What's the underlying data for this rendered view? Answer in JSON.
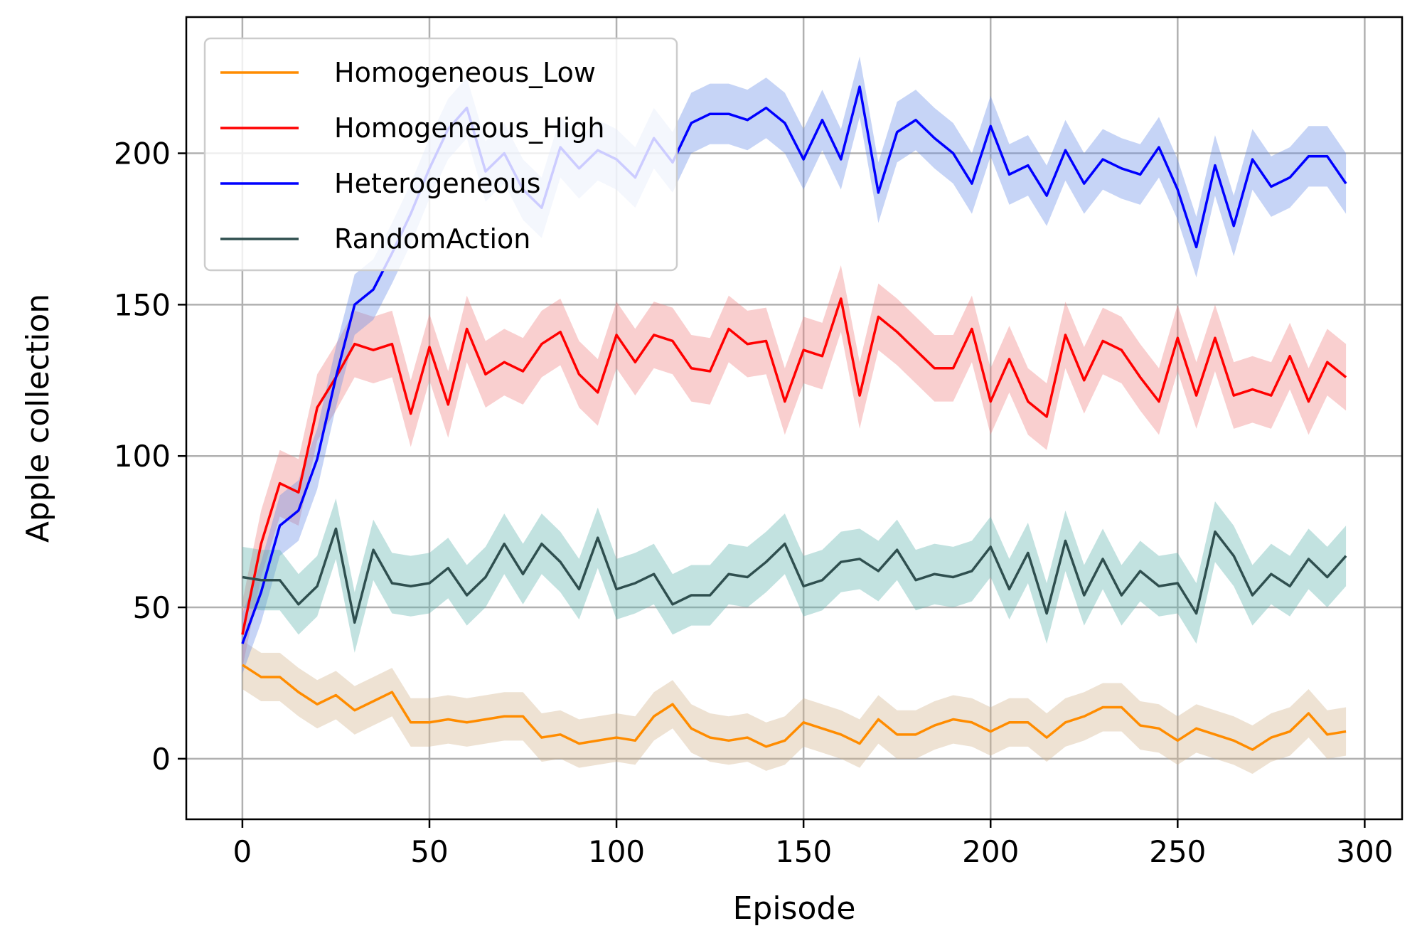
{
  "chart_data": {
    "type": "line",
    "xlabel": "Episode",
    "ylabel": "Apple collection",
    "xlim": [
      -15,
      310
    ],
    "ylim": [
      -20,
      245
    ],
    "xticks": [
      0,
      50,
      100,
      150,
      200,
      250,
      300
    ],
    "yticks": [
      0,
      50,
      100,
      150,
      200
    ],
    "grid": true,
    "legend_position": "top-left",
    "x": [
      0,
      5,
      10,
      15,
      20,
      25,
      30,
      35,
      40,
      45,
      50,
      55,
      60,
      65,
      70,
      75,
      80,
      85,
      90,
      95,
      100,
      105,
      110,
      115,
      120,
      125,
      130,
      135,
      140,
      145,
      150,
      155,
      160,
      165,
      170,
      175,
      180,
      185,
      190,
      195,
      200,
      205,
      210,
      215,
      220,
      225,
      230,
      235,
      240,
      245,
      250,
      255,
      260,
      265,
      270,
      275,
      280,
      285,
      290,
      295
    ],
    "series": [
      {
        "name": "Homogeneous_Low",
        "color": "#ff8c00",
        "band_color": "#d2b48c",
        "band": 8,
        "values": [
          31,
          27,
          27,
          22,
          18,
          21,
          16,
          19,
          22,
          12,
          12,
          13,
          12,
          13,
          14,
          14,
          7,
          8,
          5,
          6,
          7,
          6,
          14,
          18,
          10,
          7,
          6,
          7,
          4,
          6,
          12,
          10,
          8,
          5,
          13,
          8,
          8,
          11,
          13,
          12,
          9,
          12,
          12,
          7,
          12,
          14,
          17,
          17,
          11,
          10,
          6,
          10,
          8,
          6,
          3,
          7,
          9,
          15,
          8,
          9
        ]
      },
      {
        "name": "Homogeneous_High",
        "color": "#ff0000",
        "band_color": "#f08080",
        "band": 11,
        "values": [
          41,
          71,
          91,
          88,
          116,
          126,
          137,
          135,
          137,
          114,
          136,
          117,
          142,
          127,
          131,
          128,
          137,
          141,
          127,
          121,
          140,
          131,
          140,
          138,
          129,
          128,
          142,
          137,
          138,
          118,
          135,
          133,
          152,
          120,
          146,
          141,
          135,
          129,
          129,
          142,
          118,
          132,
          118,
          113,
          140,
          125,
          138,
          135,
          126,
          118,
          139,
          120,
          139,
          120,
          122,
          120,
          133,
          118,
          131,
          126
        ]
      },
      {
        "name": "Heterogeneous",
        "color": "#0000ff",
        "band_color": "#6a8fe8",
        "band": 10,
        "values": [
          38,
          55,
          77,
          82,
          99,
          126,
          150,
          155,
          167,
          180,
          195,
          208,
          215,
          194,
          200,
          188,
          182,
          202,
          195,
          201,
          198,
          192,
          205,
          197,
          210,
          213,
          213,
          211,
          215,
          210,
          198,
          211,
          198,
          222,
          187,
          207,
          211,
          205,
          200,
          190,
          209,
          193,
          196,
          186,
          201,
          190,
          198,
          195,
          193,
          202,
          188,
          169,
          196,
          176,
          198,
          189,
          192,
          199,
          199,
          190
        ]
      },
      {
        "name": "RandomAction",
        "color": "#2f4f4f",
        "band_color": "#5fb3ad",
        "band": 10,
        "values": [
          60,
          59,
          59,
          51,
          57,
          76,
          45,
          69,
          58,
          57,
          58,
          63,
          54,
          60,
          71,
          61,
          71,
          65,
          56,
          73,
          56,
          58,
          61,
          51,
          54,
          54,
          61,
          60,
          65,
          71,
          57,
          59,
          65,
          66,
          62,
          69,
          59,
          61,
          60,
          62,
          70,
          56,
          68,
          48,
          72,
          54,
          66,
          54,
          62,
          57,
          58,
          48,
          75,
          67,
          54,
          61,
          57,
          66,
          60,
          67
        ]
      }
    ]
  }
}
